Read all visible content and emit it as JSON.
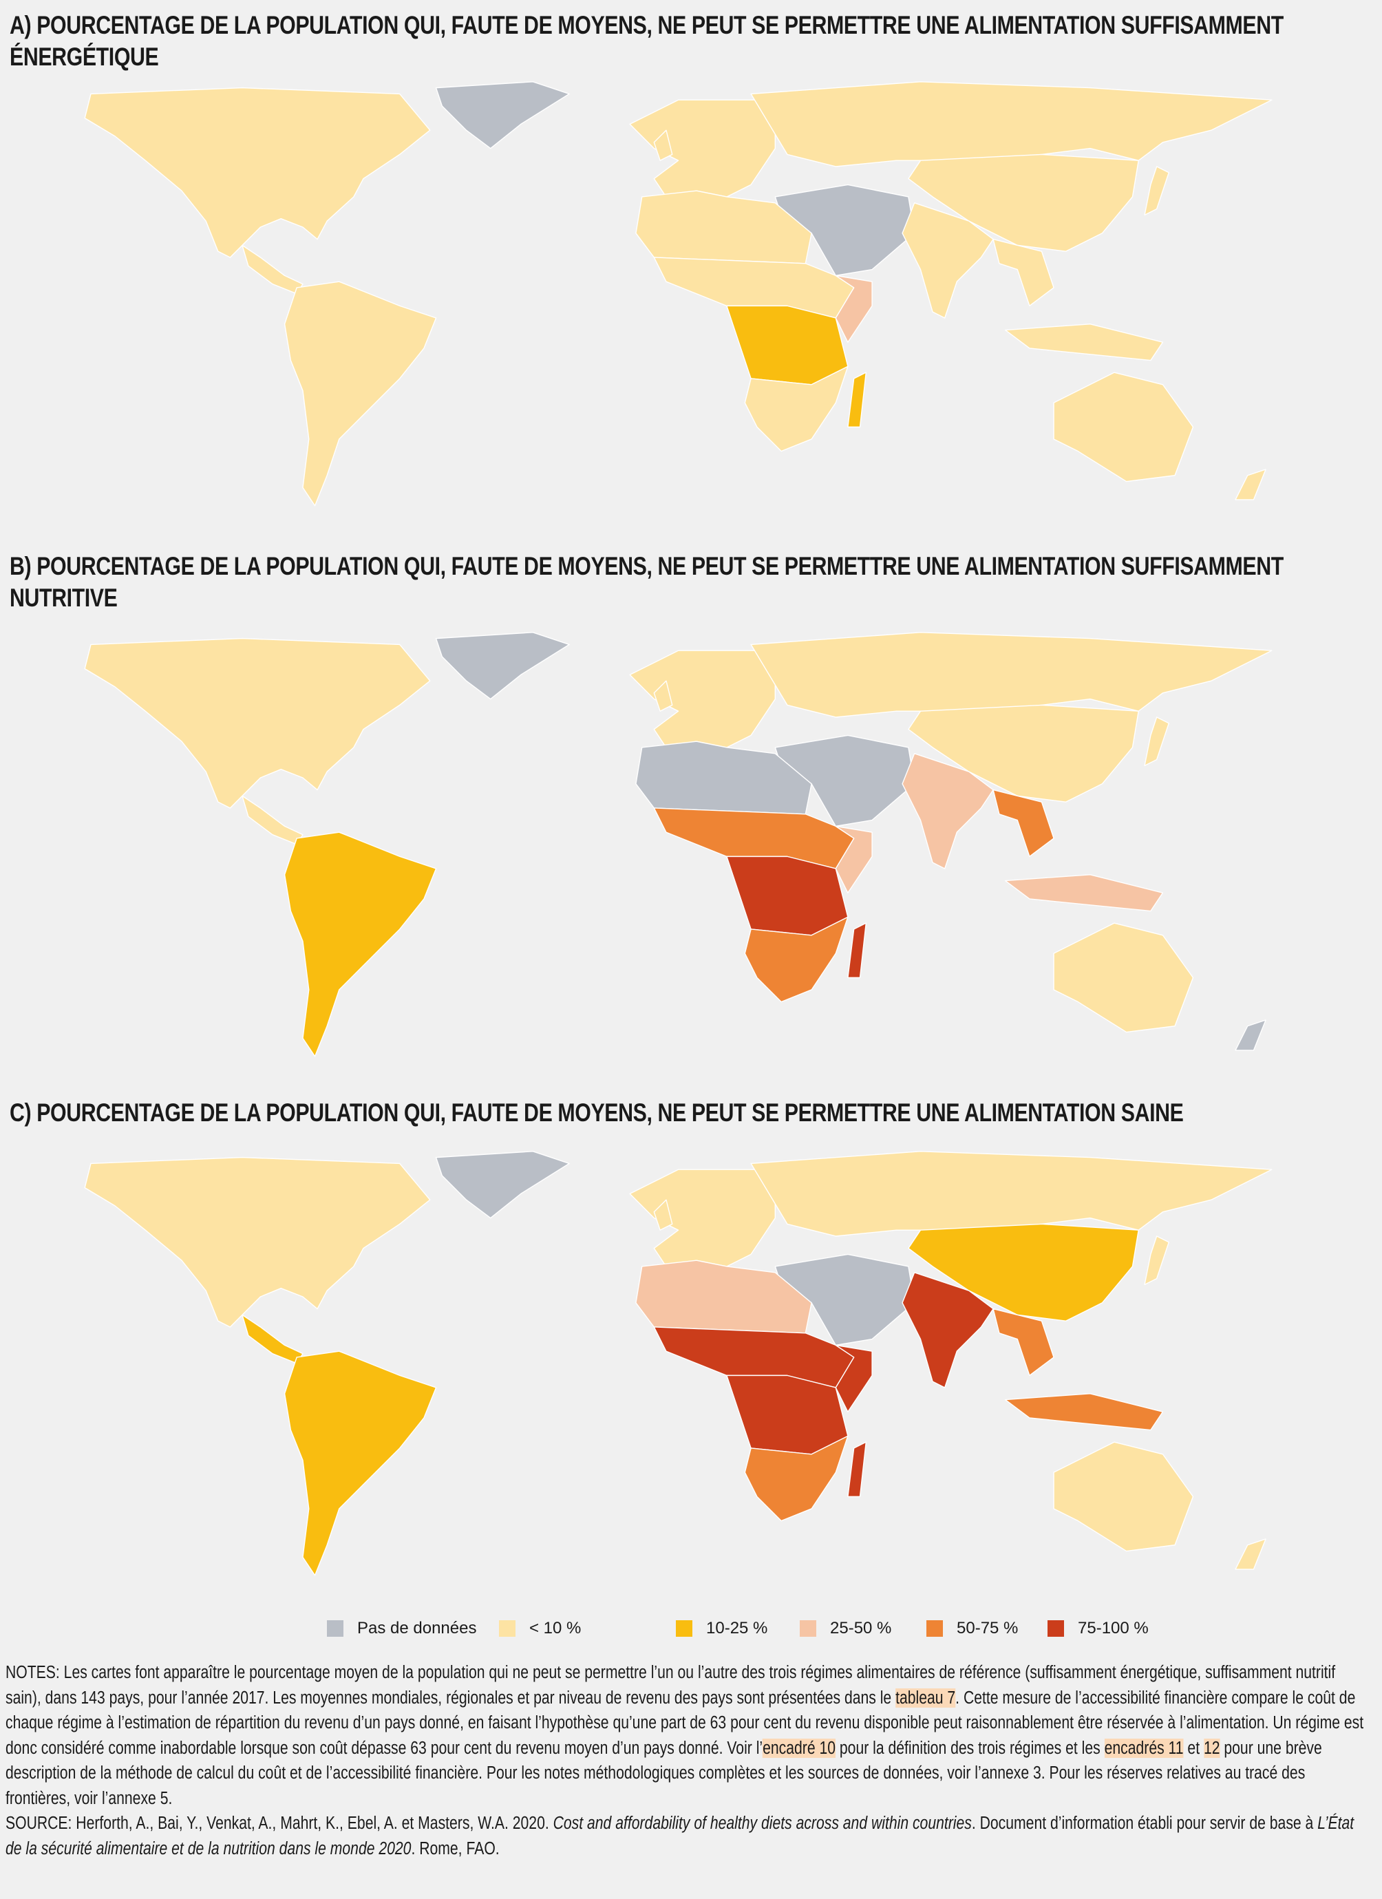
{
  "panels": [
    {
      "title": "A) POURCENTAGE DE LA POPULATION QUI, FAUTE DE MOYENS, NE PEUT SE PERMETTRE UNE ALIMENTATION SUFFISAMMENT ÉNERGÉTIQUE"
    },
    {
      "title": "B) POURCENTAGE DE LA POPULATION QUI, FAUTE DE MOYENS, NE PEUT SE PERMETTRE UNE ALIMENTATION SUFFISAMMENT NUTRITIVE"
    },
    {
      "title": "C) POURCENTAGE DE LA POPULATION QUI, FAUTE DE MOYENS, NE PEUT SE PERMETTRE UNE ALIMENTATION SAINE"
    }
  ],
  "legend": [
    {
      "label": "Pas de données",
      "color": "#b9bec6"
    },
    {
      "label": "< 10 %",
      "color": "#fde3a3"
    },
    {
      "label": "10-25 %",
      "color": "#f9bd10"
    },
    {
      "label": "25-50 %",
      "color": "#f6c4a4"
    },
    {
      "label": "50-75 %",
      "color": "#ee8434"
    },
    {
      "label": "75-100 %",
      "color": "#cb3d1b"
    }
  ],
  "notes": [
    {
      "text": "NOTES: Les cartes font apparaître le pourcentage moyen de la population qui ne peut se permettre l’un ou l’autre des trois régimes alimentaires de référence (suffisamment énergétique, suffisamment nutritif sain), dans 143 pays, pour l’année 2017. Les moyennes mondiales, régionales et par niveau de revenu des pays sont présentées dans le "
    },
    {
      "text": "tableau 7",
      "highlight": true
    },
    {
      "text": ". Cette mesure de l’accessibilité financière compare le coût de chaque régime à l’estimation de répartition du revenu d’un pays donné, en faisant l’hypothèse qu’une part de 63 pour cent du revenu disponible peut raisonnablement être réservée à l’alimentation. Un régime est donc considéré comme inabordable lorsque son coût dépasse 63 pour cent du revenu moyen d’un pays donné. Voir l’"
    },
    {
      "text": "encadré 10",
      "highlight": true
    },
    {
      "text": " pour la définition des trois régimes et les "
    },
    {
      "text": "encadrés 11",
      "highlight": true
    },
    {
      "text": " et "
    },
    {
      "text": "12",
      "highlight": true
    },
    {
      "text": " pour une brève description de la méthode de calcul du coût et de l’accessibilité financière. Pour les notes méthodologiques complètes et les sources de données, voir l’annexe 3. Pour les réserves relatives au tracé des frontières, voir l’annexe 5."
    }
  ],
  "source": [
    {
      "text": "SOURCE: Herforth, A., Bai, Y., Venkat, A., Mahrt, K., Ebel, A. et Masters, W.A. 2020. "
    },
    {
      "text": "Cost and affordability of healthy diets across and within countries",
      "italic": true
    },
    {
      "text": ". Document d’information établi pour servir de base à "
    },
    {
      "text": "L’État de la sécurité alimentaire et de la nutrition dans le monde 2020",
      "italic": true
    },
    {
      "text": ". Rome, FAO."
    }
  ]
}
